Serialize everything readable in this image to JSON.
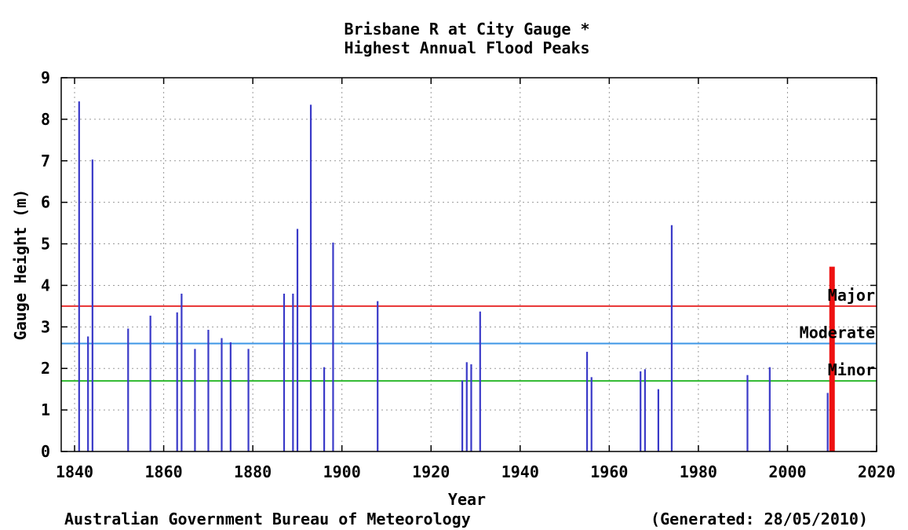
{
  "chart_data": {
    "type": "bar",
    "title": "Brisbane R at City Gauge *",
    "subtitle": "Highest Annual Flood Peaks",
    "xlabel": "Year",
    "ylabel": "Gauge Height (m)",
    "xlim": [
      1837,
      2020
    ],
    "ylim": [
      0,
      9
    ],
    "x_ticks": [
      1840,
      1860,
      1880,
      1900,
      1920,
      1940,
      1960,
      1980,
      2000,
      2020
    ],
    "y_ticks": [
      0,
      1,
      2,
      3,
      4,
      5,
      6,
      7,
      8,
      9
    ],
    "grid": true,
    "bar_color": "#3a3ac8",
    "series": [
      {
        "x": [
          1841,
          1843,
          1844,
          1852,
          1857,
          1863,
          1864,
          1867,
          1870,
          1873,
          1875,
          1879,
          1887,
          1889,
          1890,
          1893,
          1896,
          1898,
          1908,
          1927,
          1928,
          1929,
          1931,
          1955,
          1956,
          1967,
          1968,
          1971,
          1974,
          1991,
          1996,
          2009
        ],
        "values": [
          8.43,
          2.77,
          7.03,
          2.96,
          3.27,
          3.35,
          3.8,
          2.47,
          2.93,
          2.73,
          2.63,
          2.47,
          3.8,
          3.8,
          5.36,
          8.35,
          2.03,
          5.03,
          3.62,
          1.71,
          2.15,
          2.1,
          3.37,
          2.4,
          1.79,
          1.93,
          1.98,
          1.5,
          5.45,
          1.84,
          2.03,
          1.41
        ]
      }
    ],
    "thresholds": [
      {
        "label": "Major",
        "value": 3.5,
        "color": "#e83030"
      },
      {
        "label": "Moderate",
        "value": 2.6,
        "color": "#3c96e6"
      },
      {
        "label": "Minor",
        "value": 1.7,
        "color": "#2eb82e"
      }
    ],
    "highlight": {
      "x": 2010,
      "value": 4.45,
      "color": "#ee1111"
    }
  },
  "footer": {
    "left": "Australian Government Bureau of Meteorology",
    "right": "(Generated: 28/05/2010)"
  }
}
